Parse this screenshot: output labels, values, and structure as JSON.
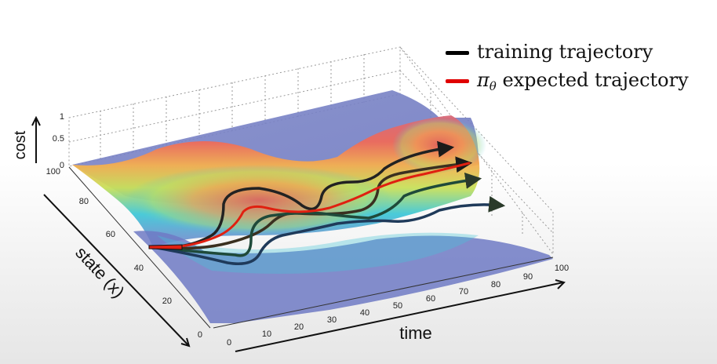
{
  "chart_data": {
    "type": "surface",
    "zlabel": "cost",
    "xlabel": "time",
    "ylabel": "state (x)",
    "xlim": [
      0,
      100
    ],
    "ylim": [
      0,
      100
    ],
    "zlim": [
      0,
      1
    ],
    "x_ticks": [
      "0",
      "10",
      "20",
      "30",
      "40",
      "50",
      "60",
      "70",
      "80",
      "90",
      "100"
    ],
    "y_ticks": [
      "0",
      "20",
      "40",
      "60",
      "80",
      "100"
    ],
    "z_ticks": [
      "0",
      "0.5",
      "1"
    ],
    "grid": true,
    "legend_position": "top-right",
    "series": [
      {
        "name": "training trajectory",
        "color": "#000000"
      },
      {
        "name": "expected trajectory",
        "color": "#e00000"
      }
    ]
  },
  "legend": {
    "training": "training trajectory",
    "expected_pi": "π",
    "expected_sub": "θ",
    "expected_rest": " expected trajectory"
  }
}
